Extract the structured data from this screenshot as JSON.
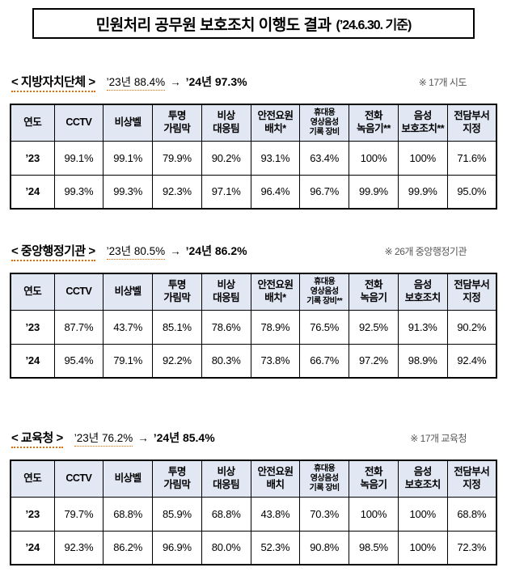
{
  "title": {
    "main": "민원처리 공무원 보호조치 이행도 결과",
    "suffix": "(’24.6.30. 기준)"
  },
  "colors": {
    "header_bg": "#e2e7f4",
    "table_border": "#000000",
    "underline_accent": "#e36c09",
    "note_text": "#575757"
  },
  "sections": [
    {
      "name_display": "< 지방자치단체 >",
      "prev": "’23년 88.4%",
      "arrow": "→",
      "curr": "’24년 97.3%",
      "note": "※ 17개 시도",
      "columns": [
        "연도",
        "CCTV",
        "비상벨",
        "투명\n가림막",
        "비상\n대응팀",
        "안전요원\n배치*",
        "휴대용\n영상음성\n기록 장비",
        "전화\n녹음기**",
        "음성\n보호조치**",
        "전담부서\n지정"
      ],
      "rows": [
        {
          "year": "’23",
          "values": [
            "99.1%",
            "99.1%",
            "79.9%",
            "90.2%",
            "93.1%",
            "63.4%",
            "100%",
            "100%",
            "71.6%"
          ]
        },
        {
          "year": "’24",
          "values": [
            "99.3%",
            "99.3%",
            "92.3%",
            "97.1%",
            "96.4%",
            "96.7%",
            "99.9%",
            "99.9%",
            "95.0%"
          ]
        }
      ]
    },
    {
      "name_display": "< 중앙행정기관 >",
      "prev": "’23년 80.5%",
      "arrow": "→",
      "curr": "’24년 86.2%",
      "note": "※ 26개 중앙행정기관",
      "columns": [
        "연도",
        "CCTV",
        "비상벨",
        "투명\n가림막",
        "비상\n대응팀",
        "안전요원\n배치*",
        "휴대용\n영상음성\n기록 장비**",
        "전화\n녹음기",
        "음성\n보호조치",
        "전담부서\n지정"
      ],
      "rows": [
        {
          "year": "’23",
          "values": [
            "87.7%",
            "43.7%",
            "85.1%",
            "78.6%",
            "78.9%",
            "76.5%",
            "92.5%",
            "91.3%",
            "90.2%"
          ]
        },
        {
          "year": "’24",
          "values": [
            "95.4%",
            "79.1%",
            "92.2%",
            "80.3%",
            "73.8%",
            "66.7%",
            "97.2%",
            "98.9%",
            "92.4%"
          ]
        }
      ]
    },
    {
      "name_display": "< 교육청 >",
      "prev": "’23년 76.2%",
      "arrow": "→",
      "curr": "’24년 85.4%",
      "note": "※ 17개 교육청",
      "columns": [
        "연도",
        "CCTV",
        "비상벨",
        "투명\n가림막",
        "비상\n대응팀",
        "안전요원\n배치",
        "휴대용\n영상음성\n기록 장비",
        "전화\n녹음기",
        "음성\n보호조치",
        "전담부서\n지정"
      ],
      "rows": [
        {
          "year": "’23",
          "values": [
            "79.7%",
            "68.8%",
            "85.9%",
            "68.8%",
            "43.8%",
            "70.3%",
            "100%",
            "100%",
            "68.8%"
          ]
        },
        {
          "year": "’24",
          "values": [
            "92.3%",
            "86.2%",
            "96.9%",
            "80.0%",
            "52.3%",
            "90.8%",
            "98.5%",
            "100%",
            "72.3%"
          ]
        }
      ]
    }
  ]
}
